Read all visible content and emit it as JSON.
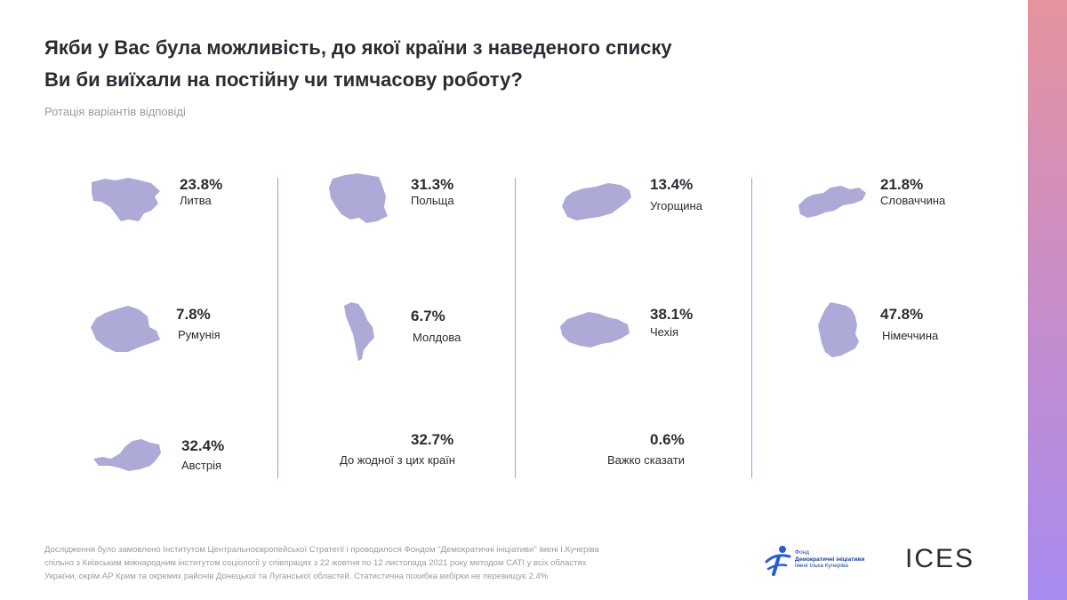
{
  "title_lines": [
    "Якби у Вас була можливість, до якої країни з наведеного списку",
    "Ви би виїхали на постійну чи тимчасову роботу?"
  ],
  "subtitle": "Ротація варіантів відповіді",
  "chart_data": {
    "type": "table",
    "title": "Якби у Вас була можливість, до якої країни з наведеного списку Ви би виїхали на постійну чи тимчасову роботу?",
    "unit": "%",
    "categories": [
      "Литва",
      "Польща",
      "Угорщина",
      "Словаччина",
      "Румунія",
      "Молдова",
      "Чехія",
      "Німеччина",
      "Австрія",
      "До жодної з цих країн",
      "Важко сказати"
    ],
    "values": [
      23.8,
      31.3,
      13.4,
      21.8,
      7.8,
      6.7,
      38.1,
      47.8,
      32.4,
      32.7,
      0.6
    ],
    "value_labels": [
      "23.8%",
      "31.3%",
      "13.4%",
      "21.8%",
      "7.8%",
      "6.7%",
      "38.1%",
      "47.8%",
      "32.4%",
      "32.7%",
      "0.6%"
    ],
    "shape_color": "#aeaad8"
  },
  "footer_text": "Дослідження було замовлено Інститутом Центральноєвропейської Стратегії і проводилося Фондом \"Демократичні ініціативи\" імені І.Кучеріва спільно з Київським міжнародним інститутом соціології у співпрацях з 22 жовтня по 12 листопада 2021 року методом CATI у всіх областях України, окрім АР Крим та окремих районів Донецької та Луганської областей. Статистична похибка вибірки не перевищує 2.4%",
  "logos": {
    "fdi_lines": [
      "Фонд",
      "Демократичні ініціативи",
      "імені Ілька Кучеріва"
    ],
    "ices_text": "ICES"
  },
  "colors": {
    "accent_bar_top": "#e6939d",
    "accent_bar_bottom": "#a78bf0",
    "divider": "#c98ad8",
    "shape": "#aeaad8"
  }
}
